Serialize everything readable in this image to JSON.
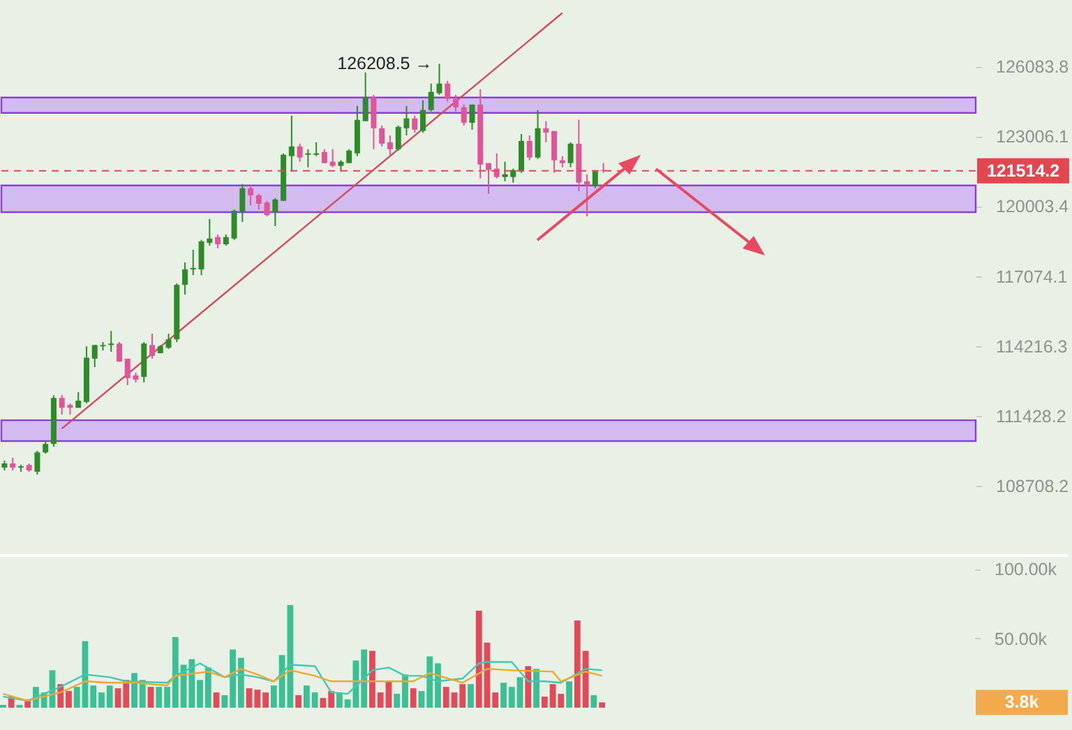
{
  "chart_data": [
    {
      "type": "candlestick",
      "log": "y",
      "tick_labels": "y",
      "categories": [
        null,
        null,
        null,
        null,
        null,
        null,
        null,
        null,
        null,
        null,
        null,
        null,
        null,
        null,
        null,
        null,
        null,
        null,
        null,
        null,
        null,
        null,
        null,
        null,
        null,
        null,
        null,
        null,
        null,
        null,
        null,
        null,
        null,
        null,
        null,
        null,
        null,
        null,
        null,
        null,
        null,
        null,
        null,
        null,
        null,
        null,
        null,
        null,
        null,
        null,
        null,
        null,
        null,
        null,
        null,
        null,
        null,
        null,
        null,
        null,
        null,
        null,
        null,
        null,
        null,
        null,
        null,
        null,
        null,
        null,
        null,
        null,
        null,
        null,
        null,
        null,
        null,
        null,
        null,
        null,
        null,
        null,
        null,
        null,
        null,
        null,
        null,
        null,
        null,
        null,
        null,
        null,
        null,
        null,
        null,
        null,
        null,
        null,
        null,
        null,
        null,
        null,
        null,
        null,
        null,
        null,
        null,
        null,
        null,
        null,
        null,
        null,
        null,
        null,
        null,
        null,
        null,
        null,
        null
      ],
      "ohlc": [
        [
          109400,
          109670,
          109290,
          109560
        ],
        [
          109560,
          109780,
          109290,
          109400
        ],
        [
          109400,
          109510,
          109240,
          109450
        ],
        [
          109500,
          109560,
          109240,
          109290
        ],
        [
          109240,
          110050,
          109130,
          109990
        ],
        [
          109990,
          110400,
          109940,
          110320
        ],
        [
          110320,
          112240,
          110210,
          112130
        ],
        [
          112130,
          112250,
          111470,
          111740
        ],
        [
          111850,
          111910,
          111470,
          111740
        ],
        [
          111740,
          112360,
          111740,
          112020
        ],
        [
          111970,
          114200,
          111910,
          113740
        ],
        [
          113700,
          114250,
          113360,
          114250
        ],
        [
          114200,
          114370,
          114030,
          114250
        ],
        [
          114250,
          114820,
          113980,
          114310
        ],
        [
          114310,
          114370,
          113580,
          113580
        ],
        [
          113700,
          113700,
          112640,
          112920
        ],
        [
          113030,
          113140,
          112750,
          112860
        ],
        [
          112970,
          114370,
          112750,
          114310
        ],
        [
          114250,
          114710,
          113700,
          113810
        ],
        [
          113920,
          114250,
          113920,
          114200
        ],
        [
          114140,
          114710,
          114090,
          114480
        ],
        [
          114480,
          116770,
          114370,
          116710
        ],
        [
          116710,
          117640,
          116310,
          117350
        ],
        [
          117350,
          118170,
          117110,
          117410
        ],
        [
          117350,
          118580,
          117110,
          118520
        ],
        [
          118460,
          119460,
          118340,
          118640
        ],
        [
          118700,
          118810,
          118230,
          118400
        ],
        [
          118400,
          118810,
          118340,
          118700
        ],
        [
          118640,
          119870,
          118580,
          119810
        ],
        [
          119750,
          120950,
          119340,
          120770
        ],
        [
          120770,
          120890,
          120040,
          120470
        ],
        [
          120470,
          120530,
          119870,
          120110
        ],
        [
          120160,
          120230,
          119570,
          119630
        ],
        [
          119750,
          120350,
          119160,
          120290
        ],
        [
          120230,
          122270,
          120230,
          122210
        ],
        [
          122150,
          123910,
          121490,
          122570
        ],
        [
          122570,
          122690,
          121910,
          122090
        ],
        [
          122210,
          122450,
          121670,
          122270
        ],
        [
          122210,
          122750,
          122150,
          122270
        ],
        [
          122330,
          122450,
          121850,
          121850
        ],
        [
          121910,
          122450,
          121670,
          121730
        ],
        [
          121730,
          121970,
          121490,
          121910
        ],
        [
          121850,
          122450,
          121850,
          122390
        ],
        [
          122270,
          124340,
          122150,
          123730
        ],
        [
          123670,
          125820,
          123670,
          124710
        ],
        [
          124710,
          124830,
          122450,
          123360
        ],
        [
          123360,
          123480,
          122570,
          122690
        ],
        [
          122750,
          123050,
          122150,
          122450
        ],
        [
          122450,
          123480,
          122390,
          123420
        ],
        [
          123360,
          124340,
          123050,
          123790
        ],
        [
          123790,
          123910,
          123170,
          123300
        ],
        [
          123240,
          124590,
          123170,
          124160
        ],
        [
          124160,
          125330,
          124100,
          124960
        ],
        [
          124900,
          126208.5,
          124830,
          125330
        ],
        [
          125330,
          125450,
          124530,
          124650
        ],
        [
          124650,
          124830,
          124100,
          124280
        ],
        [
          124280,
          124400,
          123480,
          123600
        ],
        [
          123600,
          124400,
          123300,
          124400
        ],
        [
          124400,
          125080,
          121190,
          121790
        ],
        [
          121850,
          121850,
          120530,
          121550
        ],
        [
          121610,
          122270,
          121190,
          121250
        ],
        [
          121250,
          121910,
          121070,
          121370
        ],
        [
          121250,
          121610,
          121010,
          121550
        ],
        [
          121490,
          123110,
          121430,
          122810
        ],
        [
          122810,
          123050,
          121970,
          122090
        ],
        [
          122090,
          124160,
          122030,
          123360
        ],
        [
          123360,
          123670,
          122750,
          123170
        ],
        [
          123240,
          123240,
          121430,
          121970
        ],
        [
          121970,
          122150,
          121670,
          121850
        ],
        [
          121850,
          122750,
          121670,
          122690
        ],
        [
          122690,
          123730,
          120640,
          121010
        ],
        [
          121070,
          121370,
          119570,
          120890
        ],
        [
          120890,
          121550,
          120770,
          121490
        ],
        [
          121550,
          121850,
          121430,
          121514.2
        ],
        null,
        null,
        null,
        null,
        null,
        null,
        null,
        null,
        null,
        null,
        null,
        null,
        null,
        null,
        null,
        null,
        null,
        null,
        null,
        null,
        null,
        null,
        null,
        null,
        null,
        null,
        null,
        null,
        null,
        null,
        null,
        null,
        null,
        null,
        null,
        null,
        null,
        null,
        null,
        null,
        null,
        null,
        null,
        null,
        null
      ],
      "colors": [
        "#2f8a2a",
        "#e0559a",
        "#2f8a2a",
        "#e0559a",
        "#2f8a2a",
        "#2f8a2a",
        "#2f8a2a",
        "#e0559a",
        "#e0559a",
        "#2f8a2a",
        "#2f8a2a",
        "#2f8a2a",
        "#2f8a2a",
        "#2f8a2a",
        "#e0559a",
        "#e0559a",
        "#e0559a",
        "#2f8a2a",
        "#e0559a",
        "#2f8a2a",
        "#2f8a2a",
        "#2f8a2a",
        "#2f8a2a",
        "#2f8a2a",
        "#2f8a2a",
        "#2f8a2a",
        "#e0559a",
        "#2f8a2a",
        "#2f8a2a",
        "#2f8a2a",
        "#e0559a",
        "#e0559a",
        "#e0559a",
        "#2f8a2a",
        "#2f8a2a",
        "#2f8a2a",
        "#e0559a",
        "#2f8a2a",
        "#2f8a2a",
        "#e0559a",
        "#e0559a",
        "#2f8a2a",
        "#2f8a2a",
        "#2f8a2a",
        "#2f8a2a",
        "#e0559a",
        "#e0559a",
        "#e0559a",
        "#2f8a2a",
        "#2f8a2a",
        "#e0559a",
        "#2f8a2a",
        "#2f8a2a",
        "#2f8a2a",
        "#e0559a",
        "#e0559a",
        "#e0559a",
        "#2f8a2a",
        "#e0559a",
        "#e0559a",
        "#e0559a",
        "#2f8a2a",
        "#2f8a2a",
        "#2f8a2a",
        "#e0559a",
        "#2f8a2a",
        "#e0559a",
        "#e0559a",
        "#e0559a",
        "#2f8a2a",
        "#e0559a",
        "#e0559a",
        "#2f8a2a",
        "#e0559a",
        null,
        null,
        null,
        null,
        null,
        null,
        null,
        null,
        null,
        null,
        null,
        null,
        null,
        null,
        null,
        null,
        null,
        null,
        null,
        null,
        null,
        null,
        null,
        null,
        null,
        null,
        null,
        null,
        null,
        null,
        null,
        null,
        null,
        null,
        null,
        null,
        null,
        null,
        null,
        null,
        null,
        null,
        null,
        null,
        null
      ],
      "series": [
        {
          "type": "line",
          "color": "#d24a5c",
          "values": [
            null,
            null,
            null,
            null,
            null,
            null,
            null,
            110920,
            null,
            null,
            null,
            null,
            null,
            null,
            null,
            null,
            null,
            null,
            null,
            null,
            null,
            null,
            null,
            null,
            null,
            null,
            null,
            null,
            null,
            null,
            null,
            null,
            null,
            null,
            null,
            null,
            null,
            null,
            null,
            null,
            null,
            null,
            null,
            null,
            null,
            null,
            null,
            null,
            null,
            null,
            null,
            null,
            null,
            null,
            null,
            null,
            null,
            null,
            null,
            null,
            null,
            null,
            null,
            null,
            null,
            null,
            null,
            null,
            128500,
            null,
            null,
            null,
            null,
            null,
            null,
            null,
            null,
            null,
            null,
            null,
            null,
            null,
            null,
            null,
            null,
            null,
            null,
            null,
            null,
            null,
            null,
            null,
            null,
            null,
            null,
            null,
            null,
            null,
            null,
            null,
            null,
            null,
            null,
            null,
            null,
            null,
            null,
            null,
            null,
            null,
            null,
            null,
            null,
            null,
            null,
            null,
            null,
            null,
            null
          ]
        }
      ],
      "ylim": [
        106100,
        129090
      ],
      "yticks": [
        108708.2,
        111428.2,
        114216.3,
        117074.1,
        120003.4,
        123006.1,
        126083.8
      ],
      "bands": [
        {
          "axis": "y",
          "from": 124034,
          "to": 124711,
          "color": "#c9a6f2"
        },
        {
          "axis": "y",
          "from": 119752,
          "to": 120886,
          "color": "#c9a6f2"
        },
        {
          "axis": "y",
          "from": 110433,
          "to": 111249,
          "color": "#c9a6f2"
        }
      ],
      "ref_lines": [
        {
          "axis": "y",
          "value": 121514.2,
          "label": "121514.2",
          "color": "#e2464f",
          "line_style": "dashed"
        }
      ],
      "annotations": [
        "126208.5 →"
      ]
    },
    {
      "type": "bar",
      "tick_labels": "y",
      "categories": [
        null,
        null,
        null,
        null,
        null,
        null,
        null,
        null,
        null,
        null,
        null,
        null,
        null,
        null,
        null,
        null,
        null,
        null,
        null,
        null,
        null,
        null,
        null,
        null,
        null,
        null,
        null,
        null,
        null,
        null,
        null,
        null,
        null,
        null,
        null,
        null,
        null,
        null,
        null,
        null,
        null,
        null,
        null,
        null,
        null,
        null,
        null,
        null,
        null,
        null,
        null,
        null,
        null,
        null,
        null,
        null,
        null,
        null,
        null,
        null,
        null,
        null,
        null,
        null,
        null,
        null,
        null,
        null,
        null,
        null,
        null,
        null,
        null,
        null,
        null,
        null,
        null,
        null,
        null,
        null,
        null,
        null,
        null,
        null,
        null,
        null,
        null,
        null,
        null,
        null,
        null,
        null,
        null,
        null,
        null,
        null,
        null,
        null,
        null,
        null,
        null,
        null,
        null,
        null,
        null,
        null,
        null,
        null,
        null,
        null,
        null,
        null,
        null,
        null,
        null,
        null,
        null,
        null,
        null
      ],
      "series": [
        {
          "type": "bar",
          "values": [
            2000,
            8000,
            2000,
            6000,
            15000,
            11000,
            27000,
            17000,
            12000,
            15000,
            48000,
            16000,
            11000,
            16000,
            14000,
            20000,
            25000,
            20000,
            15000,
            15000,
            15000,
            51000,
            31000,
            35000,
            20000,
            29000,
            11000,
            9000,
            42000,
            36000,
            14000,
            13000,
            11000,
            16000,
            38000,
            74000,
            9000,
            16000,
            11000,
            7000,
            12000,
            11000,
            6000,
            34000,
            42000,
            41000,
            11000,
            19000,
            10000,
            24000,
            14000,
            12000,
            37000,
            32000,
            15000,
            11000,
            17000,
            17000,
            70000,
            47000,
            11000,
            18000,
            15000,
            22000,
            30000,
            28000,
            8000,
            17000,
            10000,
            19000,
            63000,
            41000,
            9000,
            3800,
            null,
            null,
            null,
            null,
            null,
            null,
            null,
            null,
            null,
            null,
            null,
            null,
            null,
            null,
            null,
            null,
            null,
            null,
            null,
            null,
            null,
            null,
            null,
            null,
            null,
            null,
            null,
            null,
            null,
            null,
            null,
            null,
            null,
            null,
            null,
            null,
            null,
            null,
            null,
            null,
            null,
            null,
            null,
            null,
            null
          ],
          "colors": [
            "#3cbf94",
            "#e24a5a",
            "#3cbf94",
            "#e24a5a",
            "#3cbf94",
            "#3cbf94",
            "#3cbf94",
            "#e24a5a",
            "#e24a5a",
            "#3cbf94",
            "#3cbf94",
            "#3cbf94",
            "#3cbf94",
            "#3cbf94",
            "#e24a5a",
            "#e24a5a",
            "#3cbf94",
            "#3cbf94",
            "#e24a5a",
            "#3cbf94",
            "#3cbf94",
            "#3cbf94",
            "#3cbf94",
            "#3cbf94",
            "#3cbf94",
            "#3cbf94",
            "#e24a5a",
            "#3cbf94",
            "#3cbf94",
            "#3cbf94",
            "#e24a5a",
            "#e24a5a",
            "#e24a5a",
            "#3cbf94",
            "#3cbf94",
            "#3cbf94",
            "#e24a5a",
            "#3cbf94",
            "#3cbf94",
            "#e24a5a",
            "#e24a5a",
            "#3cbf94",
            "#3cbf94",
            "#3cbf94",
            "#3cbf94",
            "#e24a5a",
            "#e24a5a",
            "#e24a5a",
            "#3cbf94",
            "#3cbf94",
            "#e24a5a",
            "#3cbf94",
            "#3cbf94",
            "#3cbf94",
            "#e24a5a",
            "#e24a5a",
            "#e24a5a",
            "#3cbf94",
            "#e24a5a",
            "#e24a5a",
            "#e24a5a",
            "#3cbf94",
            "#3cbf94",
            "#3cbf94",
            "#e24a5a",
            "#3cbf94",
            "#e24a5a",
            "#e24a5a",
            "#e24a5a",
            "#3cbf94",
            "#e24a5a",
            "#e24a5a",
            "#3cbf94",
            "#e24a5a",
            null,
            null,
            null,
            null,
            null,
            null,
            null,
            null,
            null,
            null,
            null,
            null,
            null,
            null,
            null,
            null,
            null,
            null,
            null,
            null,
            null,
            null,
            null,
            null,
            null,
            null,
            null,
            null,
            null,
            null,
            null,
            null,
            null,
            null,
            null,
            null,
            null,
            null,
            null,
            null,
            null,
            null,
            null,
            null,
            null
          ]
        },
        {
          "type": "line",
          "color": "#43c9b0",
          "values": [
            8000,
            null,
            null,
            5000,
            null,
            null,
            null,
            15000,
            null,
            null,
            24000,
            null,
            null,
            22000,
            null,
            19000,
            null,
            null,
            null,
            null,
            18000,
            23000,
            null,
            null,
            32000,
            null,
            null,
            22000,
            null,
            24000,
            null,
            22000,
            null,
            19000,
            null,
            31000,
            null,
            null,
            30000,
            null,
            11000,
            null,
            10000,
            null,
            21000,
            27000,
            null,
            29000,
            null,
            23000,
            null,
            23000,
            null,
            19000,
            null,
            null,
            21000,
            null,
            32000,
            33000,
            null,
            null,
            33000,
            null,
            19000,
            null,
            19000,
            null,
            18000,
            null,
            null,
            28000,
            null,
            27000,
            null,
            null,
            null,
            null,
            null,
            null,
            null,
            null,
            null,
            null,
            null,
            null,
            null,
            null,
            null,
            null,
            null,
            null,
            null,
            null,
            null,
            null,
            null,
            null,
            null,
            null,
            null,
            null,
            null,
            null,
            null,
            null,
            null,
            null,
            null,
            null,
            null,
            null,
            null,
            null,
            null,
            null,
            null,
            null,
            null
          ]
        },
        {
          "type": "line",
          "color": "#f0a830",
          "values": [
            10000,
            null,
            null,
            5000,
            null,
            null,
            null,
            11000,
            null,
            null,
            19000,
            null,
            null,
            18000,
            null,
            null,
            18000,
            null,
            null,
            null,
            16000,
            23000,
            null,
            null,
            null,
            26000,
            null,
            22000,
            null,
            28000,
            null,
            24000,
            null,
            19000,
            null,
            27000,
            null,
            null,
            23000,
            null,
            19000,
            null,
            null,
            19000,
            null,
            null,
            null,
            19000,
            null,
            null,
            19000,
            null,
            25000,
            null,
            null,
            null,
            18000,
            null,
            null,
            28000,
            null,
            null,
            27000,
            null,
            null,
            null,
            null,
            26000,
            19000,
            null,
            null,
            26000,
            null,
            23000,
            null,
            null,
            null,
            null,
            null,
            null,
            null,
            null,
            null,
            null,
            null,
            null,
            null,
            null,
            null,
            null,
            null,
            null,
            null,
            null,
            null,
            null,
            null,
            null,
            null,
            null,
            null,
            null,
            null,
            null,
            null,
            null,
            null,
            null,
            null,
            null,
            null,
            null,
            null,
            null,
            null,
            null,
            null,
            null,
            null
          ]
        }
      ],
      "ylim": [
        0,
        108800
      ],
      "yticks": [
        {
          "value": 50000,
          "label": "50.00k"
        },
        {
          "value": 100000,
          "label": "100.00k"
        }
      ],
      "annotations": [
        "3.8k"
      ]
    }
  ]
}
